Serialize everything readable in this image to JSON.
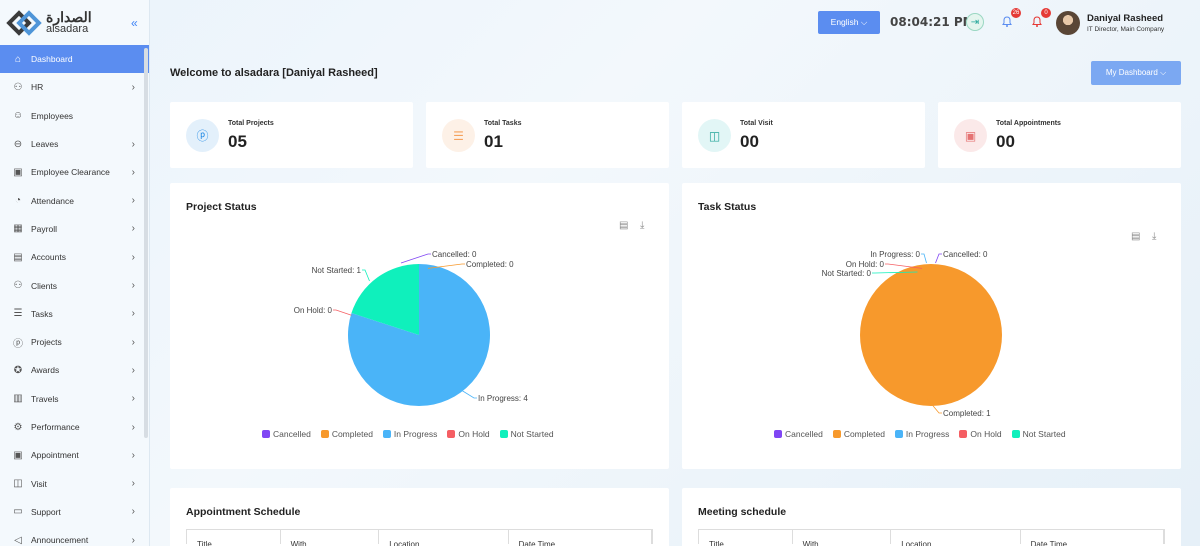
{
  "app": {
    "logo_ar": "الصدارة",
    "logo_en": "alsadara"
  },
  "sidebar": {
    "items": [
      {
        "label": "Dashboard",
        "icon": "home-icon",
        "chev": false
      },
      {
        "label": "HR",
        "icon": "users-icon",
        "chev": true
      },
      {
        "label": "Employees",
        "icon": "user-icon",
        "chev": false
      },
      {
        "label": "Leaves",
        "icon": "leave-icon",
        "chev": true
      },
      {
        "label": "Employee Clearance",
        "icon": "clipboard-icon",
        "chev": true
      },
      {
        "label": "Attendance",
        "icon": "user-clock-icon",
        "chev": true
      },
      {
        "label": "Payroll",
        "icon": "payroll-icon",
        "chev": true
      },
      {
        "label": "Accounts",
        "icon": "accounts-icon",
        "chev": true
      },
      {
        "label": "Clients",
        "icon": "clients-icon",
        "chev": true
      },
      {
        "label": "Tasks",
        "icon": "tasks-icon",
        "chev": true
      },
      {
        "label": "Projects",
        "icon": "project-icon",
        "chev": true
      },
      {
        "label": "Awards",
        "icon": "award-icon",
        "chev": true
      },
      {
        "label": "Travels",
        "icon": "travel-icon",
        "chev": true
      },
      {
        "label": "Performance",
        "icon": "performance-icon",
        "chev": true
      },
      {
        "label": "Appointment",
        "icon": "calendar-icon",
        "chev": true
      },
      {
        "label": "Visit",
        "icon": "map-icon",
        "chev": true
      },
      {
        "label": "Support",
        "icon": "support-icon",
        "chev": true
      },
      {
        "label": "Announcement",
        "icon": "megaphone-icon",
        "chev": true
      }
    ]
  },
  "topbar": {
    "language": "English ⌵",
    "time": "08:04:21 PM",
    "notif1_count": "26",
    "notif2_count": "0",
    "user_name": "Daniyal Rasheed",
    "user_role": "IT Director, Main Company"
  },
  "main": {
    "welcome": "Welcome to alsadara [Daniyal Rasheed]",
    "dashboard_select": "My Dashboard ⌵"
  },
  "stats": [
    {
      "label": "Total Projects",
      "value": "05",
      "color": "#1e88e5",
      "bg": "#e3f0fb",
      "icon": "project-icon"
    },
    {
      "label": "Total Tasks",
      "value": "01",
      "color": "#f5a25d",
      "bg": "#fdf1e7",
      "icon": "tasks-icon"
    },
    {
      "label": "Total Visit",
      "value": "00",
      "color": "#26a69a",
      "bg": "#e2f6f6",
      "icon": "map-icon"
    },
    {
      "label": "Total Appointments",
      "value": "00",
      "color": "#e57373",
      "bg": "#fbe9e9",
      "icon": "calendar-icon"
    }
  ],
  "chart_data": [
    {
      "type": "pie",
      "title": "Project Status",
      "categories": [
        "Cancelled",
        "Completed",
        "In Progress",
        "On Hold",
        "Not Started"
      ],
      "values": [
        0,
        0,
        4,
        0,
        1
      ],
      "colors": [
        "#8046f4",
        "#f7992c",
        "#4ab4f8",
        "#f55e63",
        "#0ff0bc"
      ],
      "legend": "bottom",
      "data_labels": [
        "Cancelled: 0",
        "Completed: 0",
        "In Progress: 4",
        "On Hold: 0",
        "Not Started: 1"
      ]
    },
    {
      "type": "pie",
      "title": "Task Status",
      "categories": [
        "Cancelled",
        "Completed",
        "In Progress",
        "On Hold",
        "Not Started"
      ],
      "values": [
        0,
        1,
        0,
        0,
        0
      ],
      "colors": [
        "#8046f4",
        "#f7992c",
        "#4ab4f8",
        "#f55e63",
        "#0ff0bc"
      ],
      "legend": "bottom",
      "data_labels": [
        "Cancelled: 0",
        "Completed: 1",
        "In Progress: 0",
        "On Hold: 0",
        "Not Started: 0"
      ]
    }
  ],
  "schedules": {
    "appointment_title": "Appointment Schedule",
    "appointment_columns": [
      "Title",
      "With",
      "Location",
      "Date Time"
    ],
    "meeting_title": "Meeting schedule",
    "meeting_columns": [
      "Title",
      "With",
      "Location",
      "Date Time"
    ]
  }
}
